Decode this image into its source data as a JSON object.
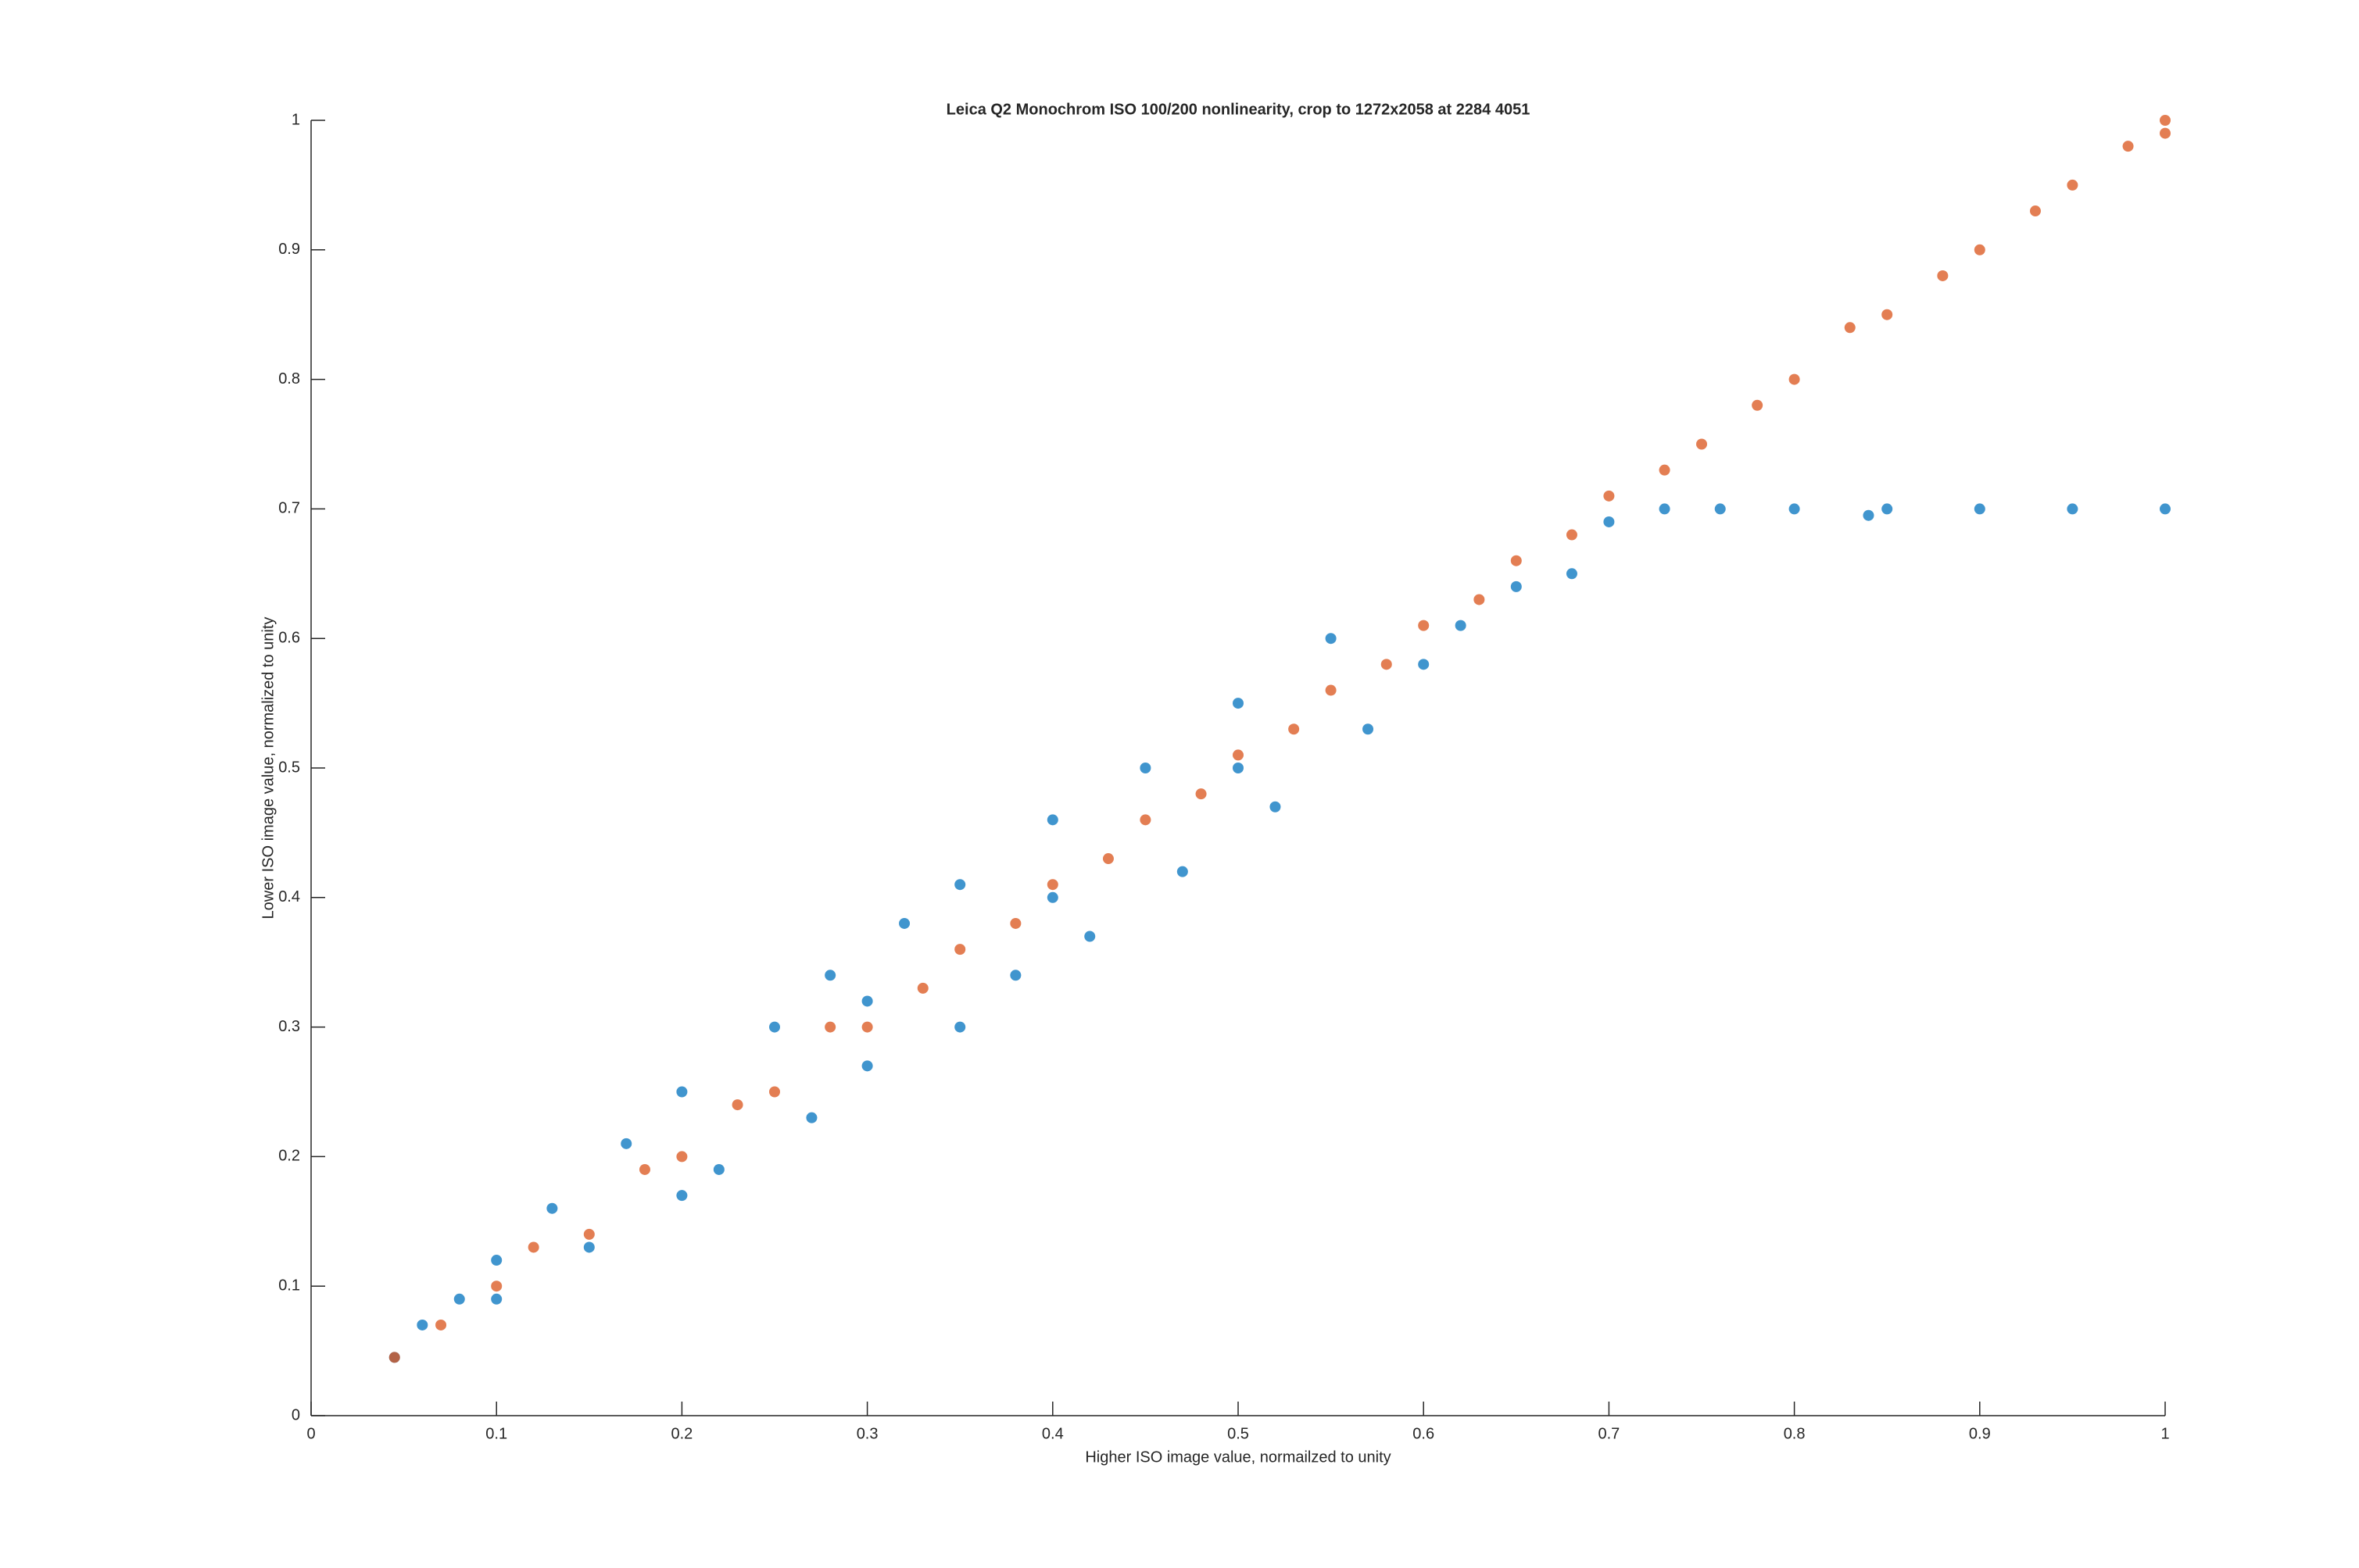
{
  "chart_data": {
    "type": "scatter",
    "title": "Leica Q2 Monochrom ISO 100/200 nonlinearity, crop to 1272x2058 at 2284  4051",
    "xlabel": "Higher ISO image value, normailzed to unity",
    "ylabel": "Lower ISO image value, normalized to unity",
    "xlim": [
      0,
      1
    ],
    "ylim": [
      0,
      1
    ],
    "xticks": [
      0,
      0.1,
      0.2,
      0.3,
      0.4,
      0.5,
      0.6,
      0.7,
      0.8,
      0.9,
      1
    ],
    "yticks": [
      0,
      0.1,
      0.2,
      0.3,
      0.4,
      0.5,
      0.6,
      0.7,
      0.8,
      0.9,
      1
    ],
    "grid": false,
    "series": [
      {
        "color": "#0072bd",
        "x": [
          0.045,
          0.06,
          0.08,
          0.1,
          0.1,
          0.13,
          0.15,
          0.17,
          0.2,
          0.2,
          0.22,
          0.25,
          0.27,
          0.28,
          0.3,
          0.32,
          0.35,
          0.35,
          0.38,
          0.4,
          0.42,
          0.45,
          0.47,
          0.5,
          0.52,
          0.55,
          0.57,
          0.6,
          0.62,
          0.65,
          0.68,
          0.7,
          0.73,
          0.76,
          0.8,
          0.84,
          0.85,
          0.9,
          0.95,
          1.0,
          0.3,
          0.4,
          0.5
        ],
        "values": [
          0.045,
          0.07,
          0.09,
          0.12,
          0.09,
          0.16,
          0.13,
          0.21,
          0.17,
          0.25,
          0.19,
          0.3,
          0.23,
          0.34,
          0.27,
          0.38,
          0.3,
          0.41,
          0.34,
          0.46,
          0.37,
          0.5,
          0.42,
          0.55,
          0.47,
          0.6,
          0.53,
          0.58,
          0.61,
          0.64,
          0.65,
          0.69,
          0.7,
          0.7,
          0.7,
          0.695,
          0.7,
          0.7,
          0.7,
          0.7,
          0.32,
          0.4,
          0.5
        ]
      },
      {
        "color": "#d95319",
        "x": [
          0.045,
          0.07,
          0.1,
          0.12,
          0.15,
          0.18,
          0.2,
          0.23,
          0.25,
          0.28,
          0.3,
          0.33,
          0.35,
          0.38,
          0.4,
          0.43,
          0.45,
          0.48,
          0.5,
          0.53,
          0.55,
          0.58,
          0.6,
          0.63,
          0.65,
          0.68,
          0.7,
          0.73,
          0.75,
          0.78,
          0.8,
          0.83,
          0.85,
          0.88,
          0.9,
          0.93,
          0.95,
          0.98,
          1.0,
          1.0
        ],
        "values": [
          0.045,
          0.07,
          0.1,
          0.13,
          0.14,
          0.19,
          0.2,
          0.24,
          0.25,
          0.3,
          0.3,
          0.33,
          0.36,
          0.38,
          0.41,
          0.43,
          0.46,
          0.48,
          0.51,
          0.53,
          0.56,
          0.58,
          0.61,
          0.63,
          0.66,
          0.68,
          0.71,
          0.73,
          0.75,
          0.78,
          0.8,
          0.84,
          0.85,
          0.88,
          0.9,
          0.93,
          0.95,
          0.98,
          0.99,
          1.0
        ]
      }
    ]
  }
}
